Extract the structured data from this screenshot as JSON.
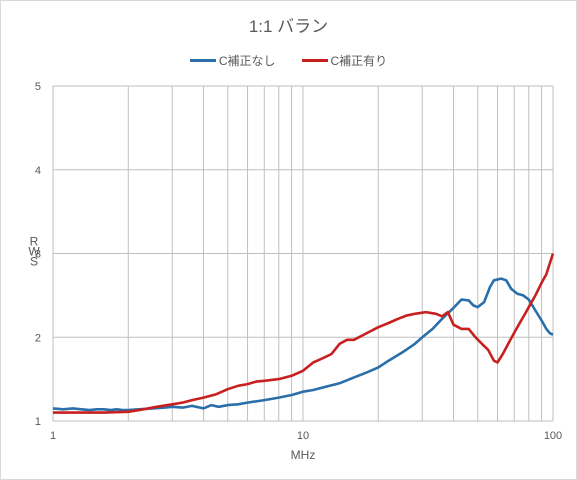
{
  "chart_data": {
    "type": "line",
    "title": "1:1 バラン",
    "xlabel": "MHz",
    "ylabel": "SWR",
    "xscale": "log",
    "xlim": [
      1,
      100
    ],
    "ylim": [
      1,
      5
    ],
    "grid": true,
    "legend_position": "top",
    "x_ticks": [
      "1",
      "10",
      "100"
    ],
    "y_ticks": [
      "1",
      "2",
      "3",
      "4",
      "5"
    ],
    "series": [
      {
        "name": "C補正なし",
        "color": "#2a6fa9",
        "points": [
          [
            1,
            1.15
          ],
          [
            1.1,
            1.14
          ],
          [
            1.2,
            1.15
          ],
          [
            1.3,
            1.14
          ],
          [
            1.4,
            1.13
          ],
          [
            1.5,
            1.14
          ],
          [
            1.6,
            1.14
          ],
          [
            1.7,
            1.13
          ],
          [
            1.8,
            1.14
          ],
          [
            1.9,
            1.13
          ],
          [
            2,
            1.13
          ],
          [
            2.2,
            1.14
          ],
          [
            2.5,
            1.15
          ],
          [
            2.8,
            1.16
          ],
          [
            3,
            1.17
          ],
          [
            3.3,
            1.16
          ],
          [
            3.6,
            1.18
          ],
          [
            4,
            1.15
          ],
          [
            4.3,
            1.19
          ],
          [
            4.6,
            1.17
          ],
          [
            5,
            1.19
          ],
          [
            5.5,
            1.2
          ],
          [
            6,
            1.22
          ],
          [
            7,
            1.25
          ],
          [
            8,
            1.28
          ],
          [
            9,
            1.31
          ],
          [
            10,
            1.35
          ],
          [
            11,
            1.37
          ],
          [
            12,
            1.4
          ],
          [
            14,
            1.45
          ],
          [
            16,
            1.52
          ],
          [
            18,
            1.58
          ],
          [
            20,
            1.64
          ],
          [
            22,
            1.72
          ],
          [
            25,
            1.82
          ],
          [
            28,
            1.92
          ],
          [
            30,
            2.0
          ],
          [
            33,
            2.1
          ],
          [
            36,
            2.22
          ],
          [
            40,
            2.35
          ],
          [
            43,
            2.45
          ],
          [
            46,
            2.44
          ],
          [
            48,
            2.38
          ],
          [
            50,
            2.36
          ],
          [
            53,
            2.42
          ],
          [
            56,
            2.6
          ],
          [
            58,
            2.68
          ],
          [
            62,
            2.7
          ],
          [
            65,
            2.68
          ],
          [
            68,
            2.58
          ],
          [
            72,
            2.52
          ],
          [
            76,
            2.5
          ],
          [
            80,
            2.45
          ],
          [
            85,
            2.32
          ],
          [
            90,
            2.2
          ],
          [
            94,
            2.1
          ],
          [
            97,
            2.05
          ],
          [
            100,
            2.03
          ]
        ]
      },
      {
        "name": "C補正有り",
        "color": "#c81f1f",
        "points": [
          [
            1,
            1.1
          ],
          [
            1.3,
            1.1
          ],
          [
            1.6,
            1.1
          ],
          [
            2,
            1.11
          ],
          [
            2.3,
            1.14
          ],
          [
            2.6,
            1.17
          ],
          [
            3,
            1.2
          ],
          [
            3.3,
            1.22
          ],
          [
            3.6,
            1.25
          ],
          [
            4,
            1.28
          ],
          [
            4.5,
            1.32
          ],
          [
            5,
            1.38
          ],
          [
            5.5,
            1.42
          ],
          [
            6,
            1.44
          ],
          [
            6.5,
            1.47
          ],
          [
            7,
            1.48
          ],
          [
            8,
            1.5
          ],
          [
            9,
            1.54
          ],
          [
            10,
            1.6
          ],
          [
            11,
            1.7
          ],
          [
            12,
            1.75
          ],
          [
            13,
            1.8
          ],
          [
            14,
            1.92
          ],
          [
            15,
            1.97
          ],
          [
            16,
            1.97
          ],
          [
            18,
            2.05
          ],
          [
            20,
            2.12
          ],
          [
            22,
            2.17
          ],
          [
            24,
            2.22
          ],
          [
            26,
            2.26
          ],
          [
            28,
            2.28
          ],
          [
            31,
            2.3
          ],
          [
            34,
            2.28
          ],
          [
            36,
            2.25
          ],
          [
            38,
            2.3
          ],
          [
            40,
            2.15
          ],
          [
            43,
            2.1
          ],
          [
            46,
            2.1
          ],
          [
            49,
            2.0
          ],
          [
            52,
            1.92
          ],
          [
            55,
            1.85
          ],
          [
            58,
            1.72
          ],
          [
            60,
            1.7
          ],
          [
            63,
            1.8
          ],
          [
            67,
            1.95
          ],
          [
            72,
            2.12
          ],
          [
            78,
            2.3
          ],
          [
            85,
            2.5
          ],
          [
            90,
            2.65
          ],
          [
            94,
            2.75
          ],
          [
            97,
            2.88
          ],
          [
            100,
            3.0
          ]
        ]
      }
    ]
  }
}
